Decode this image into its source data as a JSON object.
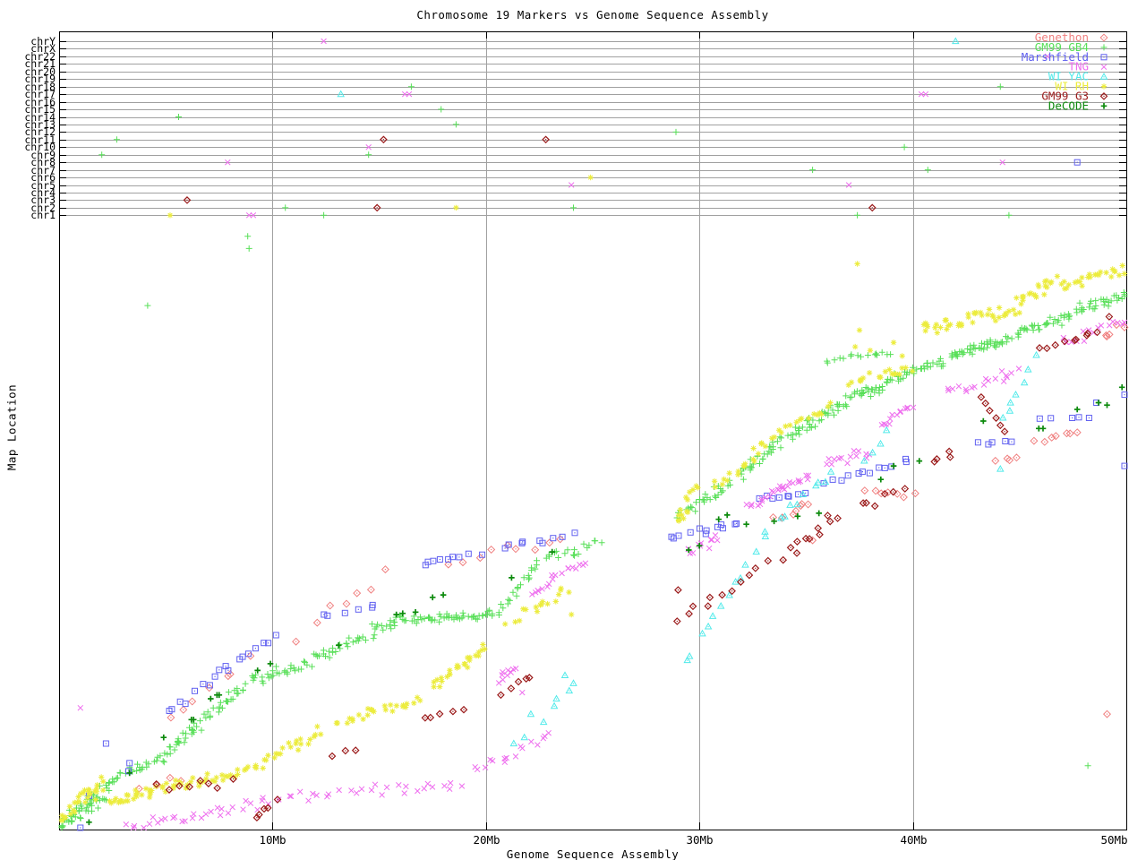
{
  "title": "Chromosome 19 Markers vs Genome Sequence Assembly",
  "xlabel": "Genome Sequence Assembly",
  "ylabel": "Map Location",
  "chart_data": {
    "type": "scatter",
    "title": "Chromosome 19 Markers vs Genome Sequence Assembly",
    "x_axis": {
      "label": "Genome Sequence Assembly",
      "units": "Mb",
      "range": [
        0,
        50
      ],
      "grid": true,
      "ticks": [
        {
          "mb": 10,
          "label": "10Mb"
        },
        {
          "mb": 20,
          "label": "20Mb"
        },
        {
          "mb": 30,
          "label": "30Mb"
        },
        {
          "mb": 40,
          "label": "40Mb"
        },
        {
          "mb": 50,
          "label": "50Mb"
        }
      ]
    },
    "y_axis": {
      "label": "Map Location",
      "units": "fraction of chr19 map (0 = bottom axis, 1 = chr1 row); top rows are hits on other chromosomes",
      "chromosome_rows": [
        "chrY",
        "chrX",
        "chr22",
        "chr21",
        "chr20",
        "chr19",
        "chr18",
        "chr17",
        "chr16",
        "chr15",
        "chr14",
        "chr13",
        "chr12",
        "chr11",
        "chr10",
        "chr9",
        "chr8",
        "chr7",
        "chr6",
        "chr5",
        "chr4",
        "chr3",
        "chr2",
        "chr1"
      ]
    },
    "legend_position": "top-right-inside",
    "series": [
      {
        "name": "Genethon",
        "color": "#f08080",
        "marker": "open-diamond-dot",
        "segments": [
          [
            3.5,
            0.068,
            6.3,
            0.085,
            4
          ],
          [
            4.9,
            0.175,
            9.3,
            0.29,
            7,
            0.01
          ],
          [
            11.0,
            0.31,
            15.5,
            0.43,
            7,
            0.012
          ],
          [
            18.0,
            0.432,
            24.0,
            0.475,
            9,
            0.012
          ],
          [
            33.4,
            0.5,
            35.2,
            0.532,
            7,
            0.008
          ],
          [
            37.6,
            0.55,
            40.0,
            0.545,
            7,
            0.006
          ],
          [
            43.9,
            0.6,
            45.1,
            0.607,
            4,
            0.005
          ],
          [
            45.6,
            0.628,
            48.1,
            0.65,
            7,
            0.006
          ],
          [
            48.7,
            0.8,
            50.0,
            0.822,
            5,
            0.008
          ]
        ],
        "points": [
          [
            49.1,
            0.188
          ],
          [
            35.3,
            0.471
          ],
          [
            34.8,
            0.53
          ]
        ],
        "chr_hits": []
      },
      {
        "name": "GM99 GB4",
        "color": "#58df58",
        "marker": "plus",
        "segments": [
          [
            0.05,
            0.01,
            2.3,
            0.06,
            55,
            0.022
          ],
          [
            2.3,
            0.075,
            5.2,
            0.125,
            30
          ],
          [
            5.2,
            0.13,
            6.6,
            0.175,
            22
          ],
          [
            6.7,
            0.18,
            8.8,
            0.235,
            25
          ],
          [
            8.9,
            0.24,
            11.8,
            0.27,
            30
          ],
          [
            11.9,
            0.275,
            14.6,
            0.32,
            26
          ],
          [
            14.7,
            0.325,
            16.4,
            0.345,
            20
          ],
          [
            16.5,
            0.34,
            20.6,
            0.352,
            48,
            0.008
          ],
          [
            20.7,
            0.36,
            22.6,
            0.44,
            20
          ],
          [
            22.7,
            0.44,
            25.4,
            0.465,
            18
          ],
          [
            28.9,
            0.51,
            31.5,
            0.565,
            30
          ],
          [
            31.8,
            0.575,
            34.0,
            0.635,
            30
          ],
          [
            34.2,
            0.64,
            37.0,
            0.7,
            40
          ],
          [
            37.1,
            0.705,
            38.6,
            0.72,
            25,
            0.01
          ],
          [
            38.7,
            0.73,
            41.5,
            0.765,
            35
          ],
          [
            41.7,
            0.77,
            44.5,
            0.8,
            45,
            0.01
          ],
          [
            44.7,
            0.805,
            47.5,
            0.84,
            35
          ],
          [
            47.6,
            0.845,
            50.0,
            0.868,
            30
          ],
          [
            35.8,
            0.765,
            39.2,
            0.778,
            16,
            0.008
          ]
        ],
        "points": [
          [
            8.84,
            0.966
          ],
          [
            8.9,
            0.946
          ],
          [
            4.15,
            0.853
          ],
          [
            48.2,
            0.104
          ]
        ],
        "chr_hits": [
          [
            "chr9",
            2.0
          ],
          [
            "chr11",
            2.7
          ],
          [
            "chr14",
            5.6
          ],
          [
            "chr2",
            10.6
          ],
          [
            "chr1",
            12.4
          ],
          [
            "chr9",
            14.5
          ],
          [
            "chr18",
            16.5
          ],
          [
            "chr15",
            17.9
          ],
          [
            "chr13",
            18.6
          ],
          [
            "chr2",
            24.1
          ],
          [
            "chr12",
            28.9
          ],
          [
            "chr7",
            35.3
          ],
          [
            "chr1",
            37.4
          ],
          [
            "chr10",
            39.6
          ],
          [
            "chr7",
            40.7
          ],
          [
            "chr18",
            44.1
          ],
          [
            "chr1",
            44.5
          ]
        ]
      },
      {
        "name": "Marshfield",
        "color": "#6060f0",
        "marker": "square-dot",
        "segments": [
          [
            5.0,
            0.19,
            10.3,
            0.32,
            18,
            0.01
          ],
          [
            12.0,
            0.345,
            15.2,
            0.37,
            6,
            0.008
          ],
          [
            16.7,
            0.43,
            19.8,
            0.452,
            9,
            0.007
          ],
          [
            20.5,
            0.462,
            24.3,
            0.48,
            9,
            0.007
          ],
          [
            28.5,
            0.475,
            32.0,
            0.5,
            12,
            0.006
          ],
          [
            32.7,
            0.54,
            35.0,
            0.546,
            8,
            0.004
          ],
          [
            35.8,
            0.565,
            40.0,
            0.603,
            12,
            0.006
          ],
          [
            42.7,
            0.627,
            45.0,
            0.632,
            5,
            0.005
          ],
          [
            45.7,
            0.667,
            48.7,
            0.673,
            5,
            0.005
          ]
        ],
        "points": [
          [
            1.0,
            0.001
          ],
          [
            1.4,
            0.055
          ],
          [
            3.25,
            0.095
          ],
          [
            3.3,
            0.108
          ],
          [
            2.2,
            0.14
          ],
          [
            48.6,
            0.695
          ],
          [
            50.0,
            0.708
          ],
          [
            50.0,
            0.592
          ]
        ],
        "chr_hits": [
          [
            "chr8",
            47.7
          ]
        ]
      },
      {
        "name": "TNG",
        "color": "#ee6eee",
        "marker": "cross",
        "segments": [
          [
            3.1,
            0.005,
            10.0,
            0.045,
            30
          ],
          [
            10.2,
            0.05,
            19.0,
            0.075,
            28
          ],
          [
            19.3,
            0.09,
            23.2,
            0.16,
            16
          ],
          [
            20.5,
            0.245,
            21.4,
            0.265,
            9,
            0.008
          ],
          [
            22.0,
            0.38,
            24.7,
            0.44,
            18,
            0.01
          ],
          [
            29.3,
            0.45,
            31.0,
            0.472,
            12
          ],
          [
            32.3,
            0.525,
            35.2,
            0.578,
            26,
            0.008
          ],
          [
            35.8,
            0.59,
            38.2,
            0.617,
            14
          ],
          [
            38.5,
            0.655,
            40.0,
            0.69,
            13,
            0.008
          ],
          [
            41.5,
            0.71,
            45.0,
            0.748,
            18
          ],
          [
            46.8,
            0.79,
            50.0,
            0.828,
            16
          ]
        ],
        "points": [
          [
            1.0,
            0.198
          ],
          [
            21.7,
            0.223
          ]
        ],
        "chr_hits": [
          [
            "chrY",
            12.4
          ],
          [
            "chr22",
            46.3
          ],
          [
            "chr17",
            16.2
          ],
          [
            "chr17",
            16.4
          ],
          [
            "chr17",
            40.4
          ],
          [
            "chr17",
            40.6
          ],
          [
            "chr10",
            14.5
          ],
          [
            "chr8",
            7.9
          ],
          [
            "chr8",
            44.2
          ],
          [
            "chr5",
            24.0
          ],
          [
            "chr5",
            37.0
          ],
          [
            "chr1",
            8.9
          ],
          [
            "chr1",
            9.1
          ]
        ]
      },
      {
        "name": "WI YAC",
        "color": "#50eaea",
        "marker": "triangle-dot",
        "segments": [
          [
            29.1,
            0.264,
            33.5,
            0.5,
            13,
            0.012
          ],
          [
            33.6,
            0.5,
            36.4,
            0.588,
            9,
            0.01
          ],
          [
            37.8,
            0.6,
            38.7,
            0.655,
            4,
            0.01
          ],
          [
            44.3,
            0.665,
            45.6,
            0.768,
            7,
            0.015
          ]
        ],
        "points": [
          [
            21.3,
            0.14
          ],
          [
            21.8,
            0.15
          ],
          [
            22.1,
            0.188
          ],
          [
            22.7,
            0.175
          ],
          [
            23.2,
            0.201
          ],
          [
            23.3,
            0.213
          ],
          [
            23.7,
            0.251
          ],
          [
            23.9,
            0.226
          ],
          [
            24.1,
            0.238
          ],
          [
            44.1,
            0.587
          ]
        ],
        "chr_hits": [
          [
            "chrY",
            42.0
          ],
          [
            "chr17",
            13.2
          ]
        ]
      },
      {
        "name": "WI RH",
        "color": "#ecec3c",
        "marker": "asterisk",
        "segments": [
          [
            0.1,
            0.015,
            2.2,
            0.08,
            30,
            0.02
          ],
          [
            2.3,
            0.045,
            4.6,
            0.065,
            25
          ],
          [
            4.7,
            0.068,
            8.2,
            0.09,
            30
          ],
          [
            8.3,
            0.09,
            12.4,
            0.16,
            30
          ],
          [
            13.0,
            0.17,
            17.0,
            0.215,
            25
          ],
          [
            17.5,
            0.23,
            20.0,
            0.3,
            25
          ],
          [
            21.0,
            0.34,
            24.0,
            0.39,
            14
          ],
          [
            28.8,
            0.5,
            29.8,
            0.555,
            14,
            0.02
          ],
          [
            30.7,
            0.555,
            33.9,
            0.65,
            22
          ],
          [
            34.1,
            0.655,
            36.3,
            0.69,
            12
          ],
          [
            37.0,
            0.73,
            40.0,
            0.75,
            18
          ],
          [
            40.3,
            0.815,
            45.0,
            0.845,
            40,
            0.014
          ],
          [
            45.0,
            0.86,
            46.7,
            0.895,
            20
          ],
          [
            46.8,
            0.885,
            50.0,
            0.912,
            25
          ]
        ],
        "points": [
          [
            37.4,
            0.921
          ],
          [
            37.5,
            0.813
          ],
          [
            37.3,
            0.786
          ],
          [
            38.0,
            0.78
          ],
          [
            39.1,
            0.793
          ],
          [
            39.5,
            0.771
          ],
          [
            22.4,
            0.355
          ],
          [
            23.5,
            0.39
          ],
          [
            24.0,
            0.35
          ]
        ],
        "chr_hits": [
          [
            "chr1",
            5.2
          ],
          [
            "chr2",
            18.6
          ],
          [
            "chr6",
            24.9
          ]
        ]
      },
      {
        "name": "GM99 G3",
        "color": "#9b1b1b",
        "marker": "diamond-dot",
        "segments": [
          [
            4.4,
            0.067,
            8.3,
            0.082,
            8
          ],
          [
            8.9,
            0.012,
            10.3,
            0.046,
            5
          ],
          [
            12.7,
            0.115,
            14.0,
            0.132,
            3
          ],
          [
            16.9,
            0.17,
            19.0,
            0.2,
            5
          ],
          [
            20.7,
            0.22,
            22.4,
            0.262,
            5
          ],
          [
            28.8,
            0.335,
            33.3,
            0.437,
            11
          ],
          [
            33.8,
            0.44,
            36.6,
            0.515,
            11
          ],
          [
            37.3,
            0.525,
            39.8,
            0.557,
            6
          ],
          [
            40.8,
            0.598,
            42.1,
            0.616,
            4
          ],
          [
            45.8,
            0.78,
            48.9,
            0.812,
            9
          ]
        ],
        "points": [
          [
            43.2,
            0.704
          ],
          [
            43.4,
            0.694
          ],
          [
            43.6,
            0.682
          ],
          [
            43.9,
            0.67
          ],
          [
            44.1,
            0.658
          ],
          [
            44.3,
            0.648
          ],
          [
            49.2,
            0.835
          ],
          [
            29.0,
            0.39
          ]
        ],
        "chr_hits": [
          [
            "chr3",
            6.0
          ],
          [
            "chr2",
            14.9
          ],
          [
            "chr11",
            15.2
          ],
          [
            "chr11",
            22.8
          ],
          [
            "chr2",
            38.1
          ]
        ]
      },
      {
        "name": "DeCODE",
        "color": "#0c8a0c",
        "marker": "plus-bold",
        "segments": [],
        "points": [
          [
            1.4,
            0.012
          ],
          [
            3.3,
            0.092
          ],
          [
            4.9,
            0.15
          ],
          [
            6.2,
            0.179
          ],
          [
            6.3,
            0.179
          ],
          [
            7.1,
            0.213
          ],
          [
            7.4,
            0.219
          ],
          [
            7.5,
            0.219
          ],
          [
            9.3,
            0.259
          ],
          [
            9.9,
            0.27
          ],
          [
            13.1,
            0.3
          ],
          [
            15.8,
            0.35
          ],
          [
            16.1,
            0.352
          ],
          [
            16.7,
            0.354
          ],
          [
            17.5,
            0.378
          ],
          [
            18.0,
            0.382
          ],
          [
            21.2,
            0.41
          ],
          [
            23.1,
            0.452
          ],
          [
            29.5,
            0.455
          ],
          [
            30.0,
            0.462
          ],
          [
            30.9,
            0.505
          ],
          [
            31.3,
            0.512
          ],
          [
            32.2,
            0.497
          ],
          [
            33.5,
            0.502
          ],
          [
            34.6,
            0.51
          ],
          [
            35.6,
            0.515
          ],
          [
            38.5,
            0.57
          ],
          [
            39.1,
            0.592
          ],
          [
            40.3,
            0.6
          ],
          [
            43.3,
            0.665
          ],
          [
            45.9,
            0.653
          ],
          [
            46.1,
            0.653
          ],
          [
            47.7,
            0.684
          ],
          [
            48.7,
            0.695
          ],
          [
            49.1,
            0.691
          ],
          [
            49.8,
            0.72
          ]
        ],
        "chr_hits": []
      }
    ],
    "colors": {
      "grid": "#a0a0a0",
      "border": "#000000",
      "text": "#000000",
      "background": "#ffffff"
    }
  }
}
